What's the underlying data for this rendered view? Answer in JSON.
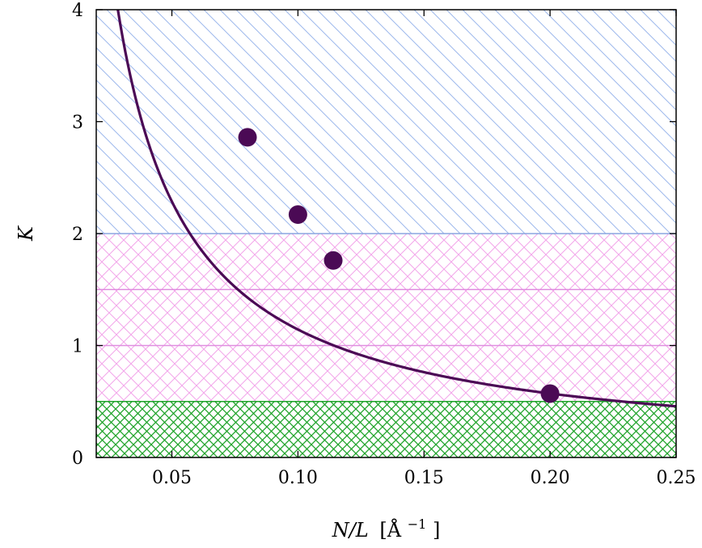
{
  "chart_data": {
    "type": "line",
    "xlabel": "N/L [Å−1]",
    "xlabel_parts": {
      "var": "N/L",
      "unit_open": "[Å",
      "unit_sup": "−1",
      "unit_close": "]"
    },
    "ylabel": "K",
    "xlim": [
      0.02,
      0.25
    ],
    "ylim": [
      0,
      4
    ],
    "x_ticks": [
      0.05,
      0.1,
      0.15,
      0.2,
      0.25
    ],
    "x_tick_labels": [
      "0.05",
      "0.10",
      "0.15",
      "0.20",
      "0.25"
    ],
    "y_ticks": [
      0,
      1,
      2,
      3,
      4
    ],
    "y_tick_labels": [
      "0",
      "1",
      "2",
      "3",
      "4"
    ],
    "grid": false,
    "curve": {
      "color": "#4b0a55",
      "form": "K = a / x",
      "a": 0.1143,
      "x_min": 0.0285,
      "x_max": 0.25
    },
    "points": {
      "color": "#4b0a55",
      "x": [
        0.08,
        0.1,
        0.114,
        0.2
      ],
      "y": [
        2.86,
        2.17,
        1.76,
        0.57
      ]
    },
    "regions": [
      {
        "y_from": 2.0,
        "y_to": 4.0,
        "pattern": "diagonal",
        "color": "#9db8ec"
      },
      {
        "y_from": 0.5,
        "y_to": 2.0,
        "pattern": "crosshatch",
        "color": "#f2a6ea"
      },
      {
        "y_from": 0.0,
        "y_to": 0.5,
        "pattern": "dense-crosshatch",
        "color": "#1fa32a"
      }
    ],
    "hlines": [
      {
        "y": 2.0,
        "color": "#8aa6e0"
      },
      {
        "y": 1.5,
        "color": "#e08ee0"
      },
      {
        "y": 1.0,
        "color": "#e08ee0"
      },
      {
        "y": 0.5,
        "color": "#1fa32a"
      }
    ]
  }
}
